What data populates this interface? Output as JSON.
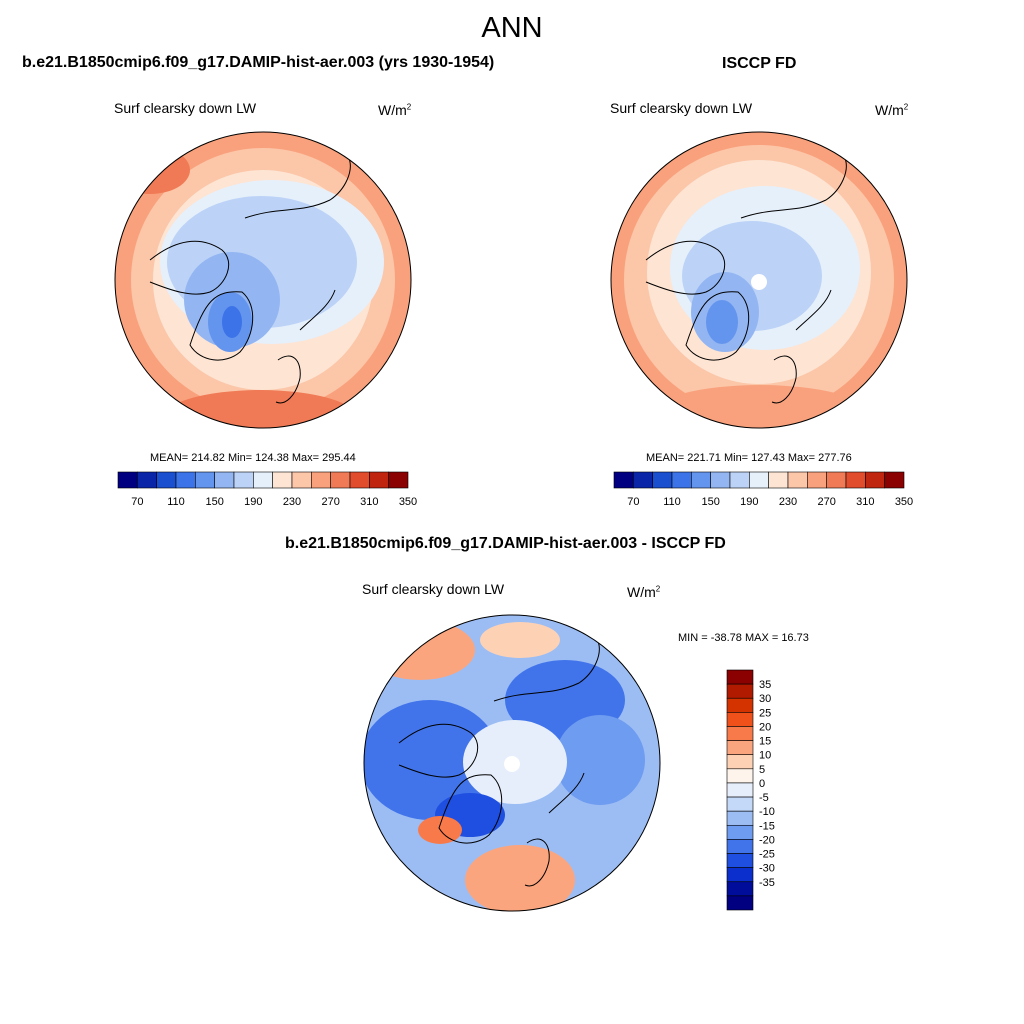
{
  "title": "ANN",
  "panels": [
    {
      "title": "b.e21.B1850cmip6.f09_g17.DAMIP-hist-aer.003 (yrs 1930-1954)",
      "variable": "Surf clearsky down LW",
      "units": "W/m",
      "units_sup": "2",
      "stats": "MEAN= 214.82  Min= 124.38  Max= 295.44"
    },
    {
      "title": "ISCCP FD",
      "variable": "Surf clearsky down LW",
      "units": "W/m",
      "units_sup": "2",
      "stats": "MEAN= 221.71  Min= 127.43  Max= 277.76"
    },
    {
      "title": "b.e21.B1850cmip6.f09_g17.DAMIP-hist-aer.003 - ISCCP FD",
      "variable": "Surf clearsky down LW",
      "units": "W/m",
      "units_sup": "2",
      "stats": "MIN = -38.78 MAX =  16.73"
    }
  ],
  "chart_data": [
    {
      "type": "heatmap",
      "projection": "north-polar-stereographic",
      "title": "b.e21.B1850cmip6.f09_g17.DAMIP-hist-aer.003 (yrs 1930-1954)",
      "variable": "Surf clearsky down LW",
      "units": "W/m2",
      "mean": 214.82,
      "min": 124.38,
      "max": 295.44,
      "levels": [
        70,
        90,
        110,
        130,
        150,
        170,
        190,
        210,
        230,
        250,
        270,
        290,
        310,
        330,
        350
      ],
      "tick_labels": [
        "70",
        "110",
        "150",
        "190",
        "230",
        "270",
        "310",
        "350"
      ],
      "colors": [
        "#000080",
        "#0a25a8",
        "#1a4fd0",
        "#3c73e8",
        "#6495ee",
        "#93b6f2",
        "#bcd3f7",
        "#e6f0fb",
        "#fde4d3",
        "#fcc6a8",
        "#f9a17c",
        "#f07a55",
        "#e04c2c",
        "#c0260f",
        "#8b0000"
      ]
    },
    {
      "type": "heatmap",
      "projection": "north-polar-stereographic",
      "title": "ISCCP FD",
      "variable": "Surf clearsky down LW",
      "units": "W/m2",
      "mean": 221.71,
      "min": 127.43,
      "max": 277.76,
      "levels": [
        70,
        90,
        110,
        130,
        150,
        170,
        190,
        210,
        230,
        250,
        270,
        290,
        310,
        330,
        350
      ],
      "tick_labels": [
        "70",
        "110",
        "150",
        "190",
        "230",
        "270",
        "310",
        "350"
      ],
      "colors": [
        "#000080",
        "#0a25a8",
        "#1a4fd0",
        "#3c73e8",
        "#6495ee",
        "#93b6f2",
        "#bcd3f7",
        "#e6f0fb",
        "#fde4d3",
        "#fcc6a8",
        "#f9a17c",
        "#f07a55",
        "#e04c2c",
        "#c0260f",
        "#8b0000"
      ]
    },
    {
      "type": "heatmap",
      "projection": "north-polar-stereographic",
      "title": "b.e21.B1850cmip6.f09_g17.DAMIP-hist-aer.003 - ISCCP FD",
      "variable": "Surf clearsky down LW",
      "units": "W/m2",
      "min": -38.78,
      "max": 16.73,
      "levels": [
        35,
        30,
        25,
        20,
        15,
        10,
        5,
        0,
        -5,
        -10,
        -15,
        -20,
        -25,
        -30,
        -35
      ],
      "tick_labels": [
        "35",
        "30",
        "25",
        "20",
        "15",
        "10",
        "5",
        "0",
        "-5",
        "-10",
        "-15",
        "-20",
        "-25",
        "-30",
        "-35"
      ],
      "colors": [
        "#8b0000",
        "#b21a00",
        "#d43300",
        "#f0501a",
        "#f87a4a",
        "#fba57e",
        "#fdd2b4",
        "#fff4ec",
        "#e6eefb",
        "#c4d8f8",
        "#9cbdf4",
        "#6e9cf0",
        "#4174ea",
        "#1e4fe0",
        "#0a2fcc",
        "#000c9a",
        "#000080"
      ]
    }
  ]
}
